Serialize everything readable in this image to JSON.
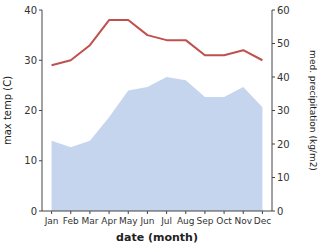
{
  "chart_data": {
    "type": "line",
    "categories": [
      "Jan",
      "Feb",
      "Mar",
      "Apr",
      "May",
      "Jun",
      "Jul",
      "Aug",
      "Sep",
      "Oct",
      "Nov",
      "Dec"
    ],
    "series": [
      {
        "type": "area",
        "axis": "y2",
        "color": "#c5d5ee",
        "values": [
          21,
          19,
          21,
          28,
          36,
          37,
          40,
          39,
          34,
          34,
          37,
          31
        ]
      },
      {
        "type": "line",
        "color": "#c0504d",
        "values": [
          29,
          30,
          33,
          38,
          38,
          35,
          34,
          34,
          31,
          31,
          32,
          30
        ]
      }
    ],
    "xlabel": "date (month)",
    "ylabel": "max temp (C)",
    "y2label": "med. precipitation (kg/m2)",
    "ylim": [
      0,
      40
    ],
    "yticks": [
      0,
      10,
      20,
      30,
      40
    ],
    "y2lim": [
      0,
      60
    ],
    "y2ticks": [
      0,
      10,
      20,
      30,
      40,
      50,
      60
    ],
    "grid": false
  }
}
